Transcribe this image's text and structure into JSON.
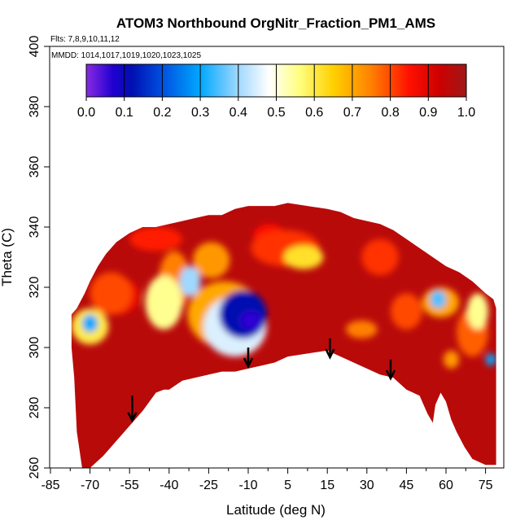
{
  "chart_data": {
    "type": "heatmap",
    "title": "ATOM3 Northbound OrgNitr_Fraction_PM1_AMS",
    "flights_note": "Flts: 7,8,9,10,11,12",
    "dates_note": "MMDD: 1014,1017,1019,1020,1023,1025",
    "xlabel": "Latitude (deg N)",
    "ylabel": "Theta (C)",
    "xlim": [
      -85,
      80
    ],
    "ylim": [
      260,
      400
    ],
    "x_ticks": [
      "-85",
      "-70",
      "-55",
      "-40",
      "-25",
      "-10",
      "5",
      "15",
      "30",
      "45",
      "60",
      "75"
    ],
    "x_tick_values": [
      -85,
      -70,
      -55,
      -40,
      -25,
      -10,
      5,
      15,
      30,
      45,
      60,
      75
    ],
    "y_ticks": [
      "260",
      "280",
      "300",
      "320",
      "340",
      "360",
      "380",
      "400"
    ],
    "y_tick_values": [
      260,
      280,
      300,
      320,
      340,
      360,
      380,
      400
    ],
    "colorbar": {
      "range": [
        0,
        1
      ],
      "labels": [
        "0.0",
        "0.1",
        "0.2",
        "0.3",
        "0.4",
        "0.5",
        "0.6",
        "0.7",
        "0.8",
        "0.9",
        "1.0"
      ],
      "stops": [
        {
          "value": 0.0,
          "color": "#8a2be2"
        },
        {
          "value": 0.07,
          "color": "#2000d0"
        },
        {
          "value": 0.12,
          "color": "#0010b0"
        },
        {
          "value": 0.2,
          "color": "#0050e0"
        },
        {
          "value": 0.3,
          "color": "#00a8ff"
        },
        {
          "value": 0.4,
          "color": "#a0d8ff"
        },
        {
          "value": 0.48,
          "color": "#ffffff"
        },
        {
          "value": 0.56,
          "color": "#ffff80"
        },
        {
          "value": 0.65,
          "color": "#ffd000"
        },
        {
          "value": 0.75,
          "color": "#ff8000"
        },
        {
          "value": 0.85,
          "color": "#ff1000"
        },
        {
          "value": 0.93,
          "color": "#cc0000"
        },
        {
          "value": 1.0,
          "color": "#a01818"
        }
      ]
    },
    "background_value": 0.96,
    "coverage_top": [
      [
        -77,
        311
      ],
      [
        -75,
        313
      ],
      [
        -72,
        318
      ],
      [
        -70,
        322
      ],
      [
        -67,
        327
      ],
      [
        -64,
        331
      ],
      [
        -60,
        335
      ],
      [
        -55,
        338
      ],
      [
        -50,
        340
      ],
      [
        -45,
        340
      ],
      [
        -40,
        341
      ],
      [
        -35,
        342
      ],
      [
        -30,
        343
      ],
      [
        -25,
        344
      ],
      [
        -20,
        344
      ],
      [
        -15,
        346
      ],
      [
        -10,
        347
      ],
      [
        -5,
        347
      ],
      [
        0,
        347
      ],
      [
        5,
        348
      ],
      [
        10,
        347
      ],
      [
        15,
        346
      ],
      [
        20,
        345
      ],
      [
        25,
        343
      ],
      [
        30,
        342
      ],
      [
        35,
        341
      ],
      [
        40,
        339
      ],
      [
        45,
        336
      ],
      [
        50,
        333
      ],
      [
        55,
        330
      ],
      [
        60,
        327
      ],
      [
        65,
        325
      ],
      [
        70,
        322
      ],
      [
        75,
        318
      ],
      [
        78,
        316
      ],
      [
        79,
        313
      ]
    ],
    "coverage_bottom": [
      [
        79,
        261
      ],
      [
        75,
        261
      ],
      [
        70,
        263
      ],
      [
        67,
        267
      ],
      [
        64,
        272
      ],
      [
        62,
        276
      ],
      [
        60,
        282
      ],
      [
        58,
        285
      ],
      [
        56,
        281
      ],
      [
        55,
        275
      ],
      [
        53,
        278
      ],
      [
        50,
        284
      ],
      [
        45,
        286
      ],
      [
        40,
        290
      ],
      [
        35,
        291
      ],
      [
        30,
        293
      ],
      [
        25,
        295
      ],
      [
        20,
        297
      ],
      [
        15,
        299
      ],
      [
        10,
        298
      ],
      [
        5,
        297
      ],
      [
        0,
        295
      ],
      [
        -5,
        294
      ],
      [
        -10,
        293
      ],
      [
        -15,
        292
      ],
      [
        -20,
        292
      ],
      [
        -25,
        291
      ],
      [
        -30,
        290
      ],
      [
        -35,
        289
      ],
      [
        -40,
        286
      ],
      [
        -42,
        286
      ],
      [
        -45,
        285
      ],
      [
        -50,
        279
      ],
      [
        -55,
        274
      ],
      [
        -60,
        269
      ],
      [
        -65,
        264
      ],
      [
        -70,
        260
      ],
      [
        -73,
        260
      ],
      [
        -75,
        272
      ],
      [
        -76,
        290
      ],
      [
        -77,
        300
      ]
    ],
    "features": [
      {
        "lat": -12,
        "theta": 311,
        "rx": 9,
        "ry": 8,
        "value": 0.12
      },
      {
        "lat": -9,
        "theta": 309,
        "rx": 4,
        "ry": 3,
        "value": 0.06
      },
      {
        "lat": -15,
        "theta": 307,
        "rx": 12,
        "ry": 10,
        "value": 0.45
      },
      {
        "lat": -19,
        "theta": 311,
        "rx": 14,
        "ry": 11,
        "value": 0.7
      },
      {
        "lat": -32,
        "theta": 322,
        "rx": 4,
        "ry": 5,
        "value": 0.4
      },
      {
        "lat": -42,
        "theta": 315,
        "rx": 7,
        "ry": 9,
        "value": 0.55
      },
      {
        "lat": -38,
        "theta": 322,
        "rx": 6,
        "ry": 10,
        "value": 0.75
      },
      {
        "lat": -70,
        "theta": 308,
        "rx": 3,
        "ry": 3,
        "value": 0.3
      },
      {
        "lat": -70,
        "theta": 307,
        "rx": 7,
        "ry": 6,
        "value": 0.6
      },
      {
        "lat": -62,
        "theta": 318,
        "rx": 8,
        "ry": 7,
        "value": 0.8
      },
      {
        "lat": -24,
        "theta": 329,
        "rx": 7,
        "ry": 6,
        "value": 0.72
      },
      {
        "lat": 9,
        "theta": 330,
        "rx": 5,
        "ry": 4,
        "value": 0.62
      },
      {
        "lat": 4,
        "theta": 333,
        "rx": 9,
        "ry": 6,
        "value": 0.82
      },
      {
        "lat": 28,
        "theta": 306,
        "rx": 6,
        "ry": 3,
        "value": 0.75
      },
      {
        "lat": 57,
        "theta": 316,
        "rx": 3,
        "ry": 3,
        "value": 0.35
      },
      {
        "lat": 58,
        "theta": 315,
        "rx": 7,
        "ry": 5,
        "value": 0.7
      },
      {
        "lat": 72,
        "theta": 312,
        "rx": 4,
        "ry": 6,
        "value": 0.55
      },
      {
        "lat": 77,
        "theta": 296,
        "rx": 2,
        "ry": 2,
        "value": 0.3
      },
      {
        "lat": 70,
        "theta": 305,
        "rx": 6,
        "ry": 8,
        "value": 0.78
      },
      {
        "lat": 45,
        "theta": 312,
        "rx": 6,
        "ry": 6,
        "value": 0.8
      },
      {
        "lat": 35,
        "theta": 330,
        "rx": 7,
        "ry": 6,
        "value": 0.82
      },
      {
        "lat": -45,
        "theta": 336,
        "rx": 10,
        "ry": 4,
        "value": 0.84
      },
      {
        "lat": -2,
        "theta": 337,
        "rx": 6,
        "ry": 4,
        "value": 0.85
      },
      {
        "lat": 62,
        "theta": 296,
        "rx": 3,
        "ry": 3,
        "value": 0.72
      },
      {
        "lat": -59,
        "theta": 317,
        "rx": 8,
        "ry": 6,
        "value": 0.88
      }
    ],
    "annotations": [
      {
        "type": "arrow",
        "lat": -54,
        "theta_start": 284,
        "theta_end": 276
      },
      {
        "type": "arrow",
        "lat": -10,
        "theta_start": 300,
        "theta_end": 294
      },
      {
        "type": "arrow",
        "lat": 16,
        "theta_start": 303,
        "theta_end": 297
      },
      {
        "type": "arrow",
        "lat": 39,
        "theta_start": 296,
        "theta_end": 290
      }
    ]
  }
}
